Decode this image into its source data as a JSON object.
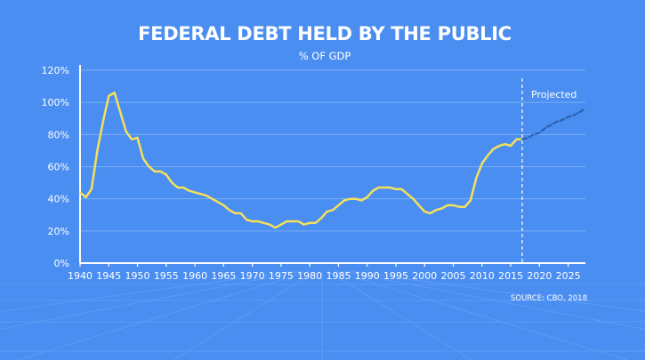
{
  "chart_data": {
    "type": "line",
    "title": "FEDERAL DEBT HELD BY THE PUBLIC",
    "subtitle": "% OF GDP",
    "source": "SOURCE: CBO, 2018",
    "projection_label": "Projected",
    "projection_start": 2017,
    "xlim": [
      1940,
      2028
    ],
    "ylim": [
      0,
      120
    ],
    "x_ticks": [
      1940,
      1945,
      1950,
      1955,
      1960,
      1965,
      1970,
      1975,
      1980,
      1985,
      1990,
      1995,
      2000,
      2005,
      2010,
      2015,
      2020,
      2025
    ],
    "y_ticks": [
      {
        "value": 0,
        "label": "0%"
      },
      {
        "value": 20,
        "label": "20%"
      },
      {
        "value": 40,
        "label": "40%"
      },
      {
        "value": 60,
        "label": "60%"
      },
      {
        "value": 80,
        "label": "80%"
      },
      {
        "value": 100,
        "label": "100%"
      },
      {
        "value": 120,
        "label": "120%"
      }
    ],
    "grid": true,
    "series": [
      {
        "style": "solid",
        "color": "#f5e05a",
        "x": [
          1940,
          1941,
          1942,
          1943,
          1944,
          1945,
          1946,
          1947,
          1948,
          1949,
          1950,
          1951,
          1952,
          1953,
          1954,
          1955,
          1956,
          1957,
          1958,
          1959,
          1960,
          1961,
          1962,
          1963,
          1964,
          1965,
          1966,
          1967,
          1968,
          1969,
          1970,
          1971,
          1972,
          1973,
          1974,
          1975,
          1976,
          1977,
          1978,
          1979,
          1980,
          1981,
          1982,
          1983,
          1984,
          1985,
          1986,
          1987,
          1988,
          1989,
          1990,
          1991,
          1992,
          1993,
          1994,
          1995,
          1996,
          1997,
          1998,
          1999,
          2000,
          2001,
          2002,
          2003,
          2004,
          2005,
          2006,
          2007,
          2008,
          2009,
          2010,
          2011,
          2012,
          2013,
          2014,
          2015,
          2016,
          2017
        ],
        "y": [
          44,
          41,
          46,
          70,
          88,
          104,
          106,
          94,
          82,
          77,
          78,
          65,
          60,
          57,
          57,
          55,
          50,
          47,
          47,
          45,
          44,
          43,
          42,
          40,
          38,
          36,
          33,
          31,
          31,
          27,
          26,
          26,
          25,
          24,
          22,
          24,
          26,
          26,
          26,
          24,
          25,
          25,
          28,
          32,
          33,
          36,
          39,
          40,
          40,
          39,
          41,
          45,
          47,
          47,
          47,
          46,
          46,
          43,
          40,
          36,
          32,
          31,
          33,
          34,
          36,
          36,
          35,
          35,
          39,
          53,
          62,
          67,
          71,
          73,
          74,
          73,
          77,
          77
        ]
      },
      {
        "style": "dashed",
        "color": "#2e5fae",
        "x": [
          2017,
          2018,
          2019,
          2020,
          2021,
          2022,
          2023,
          2024,
          2025,
          2026,
          2027,
          2028
        ],
        "y": [
          77,
          78,
          80,
          81,
          84,
          86,
          88,
          89,
          91,
          92,
          94,
          96
        ]
      }
    ]
  }
}
